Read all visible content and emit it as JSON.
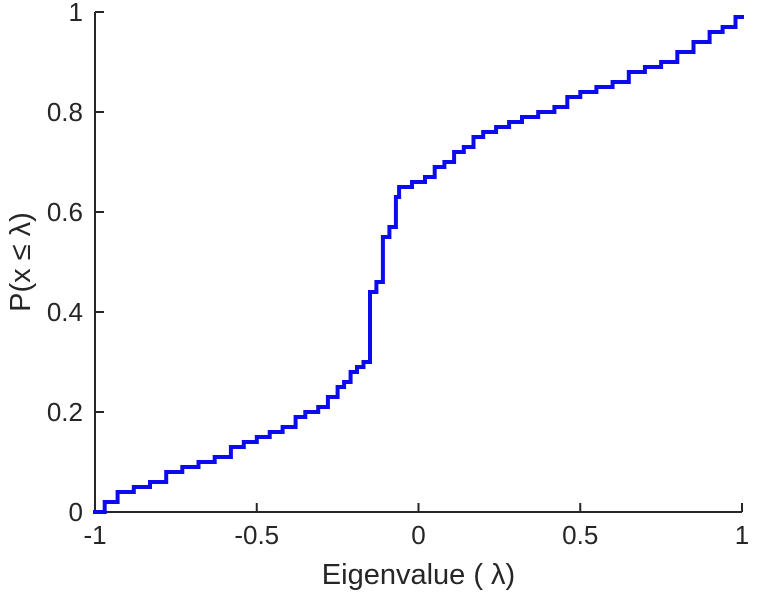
{
  "chart_data": {
    "type": "line",
    "subtype": "empirical-cdf-stairs",
    "title": "",
    "xlabel": "Eigenvalue (  λ)",
    "ylabel": "P(x ≤ λ)",
    "xlim": [
      -1,
      1
    ],
    "ylim": [
      0,
      1
    ],
    "grid": false,
    "legend_position": "none",
    "x_ticks": [
      -1,
      -0.5,
      0,
      0.5,
      1
    ],
    "x_tick_labels": [
      "-1",
      "-0.5",
      "0",
      "0.5",
      "1"
    ],
    "y_ticks": [
      0,
      0.2,
      0.4,
      0.6,
      0.8,
      1
    ],
    "y_tick_labels": [
      "0",
      "0.2",
      "0.4",
      "0.6",
      "0.8",
      "1"
    ],
    "line_color": "#0b0bee",
    "line_width": 4,
    "axis_color": "#262626",
    "start_point": [
      -1,
      0
    ],
    "end_x": 1,
    "points": [
      [
        -0.97,
        0.02
      ],
      [
        -0.93,
        0.04
      ],
      [
        -0.88,
        0.05
      ],
      [
        -0.83,
        0.06
      ],
      [
        -0.78,
        0.08
      ],
      [
        -0.73,
        0.09
      ],
      [
        -0.68,
        0.1
      ],
      [
        -0.63,
        0.11
      ],
      [
        -0.58,
        0.13
      ],
      [
        -0.54,
        0.14
      ],
      [
        -0.5,
        0.15
      ],
      [
        -0.46,
        0.16
      ],
      [
        -0.42,
        0.17
      ],
      [
        -0.38,
        0.19
      ],
      [
        -0.35,
        0.2
      ],
      [
        -0.31,
        0.21
      ],
      [
        -0.28,
        0.23
      ],
      [
        -0.25,
        0.25
      ],
      [
        -0.23,
        0.26
      ],
      [
        -0.21,
        0.28
      ],
      [
        -0.19,
        0.29
      ],
      [
        -0.17,
        0.3
      ],
      [
        -0.15,
        0.44
      ],
      [
        -0.13,
        0.46
      ],
      [
        -0.11,
        0.55
      ],
      [
        -0.09,
        0.57
      ],
      [
        -0.07,
        0.63
      ],
      [
        -0.06,
        0.65
      ],
      [
        -0.02,
        0.66
      ],
      [
        0.02,
        0.67
      ],
      [
        0.05,
        0.69
      ],
      [
        0.08,
        0.7
      ],
      [
        0.11,
        0.72
      ],
      [
        0.14,
        0.73
      ],
      [
        0.17,
        0.75
      ],
      [
        0.2,
        0.76
      ],
      [
        0.24,
        0.77
      ],
      [
        0.28,
        0.78
      ],
      [
        0.32,
        0.79
      ],
      [
        0.37,
        0.8
      ],
      [
        0.42,
        0.81
      ],
      [
        0.46,
        0.83
      ],
      [
        0.5,
        0.84
      ],
      [
        0.55,
        0.85
      ],
      [
        0.6,
        0.86
      ],
      [
        0.65,
        0.88
      ],
      [
        0.7,
        0.89
      ],
      [
        0.75,
        0.9
      ],
      [
        0.8,
        0.92
      ],
      [
        0.85,
        0.94
      ],
      [
        0.9,
        0.96
      ],
      [
        0.94,
        0.97
      ],
      [
        0.98,
        0.99
      ]
    ]
  }
}
